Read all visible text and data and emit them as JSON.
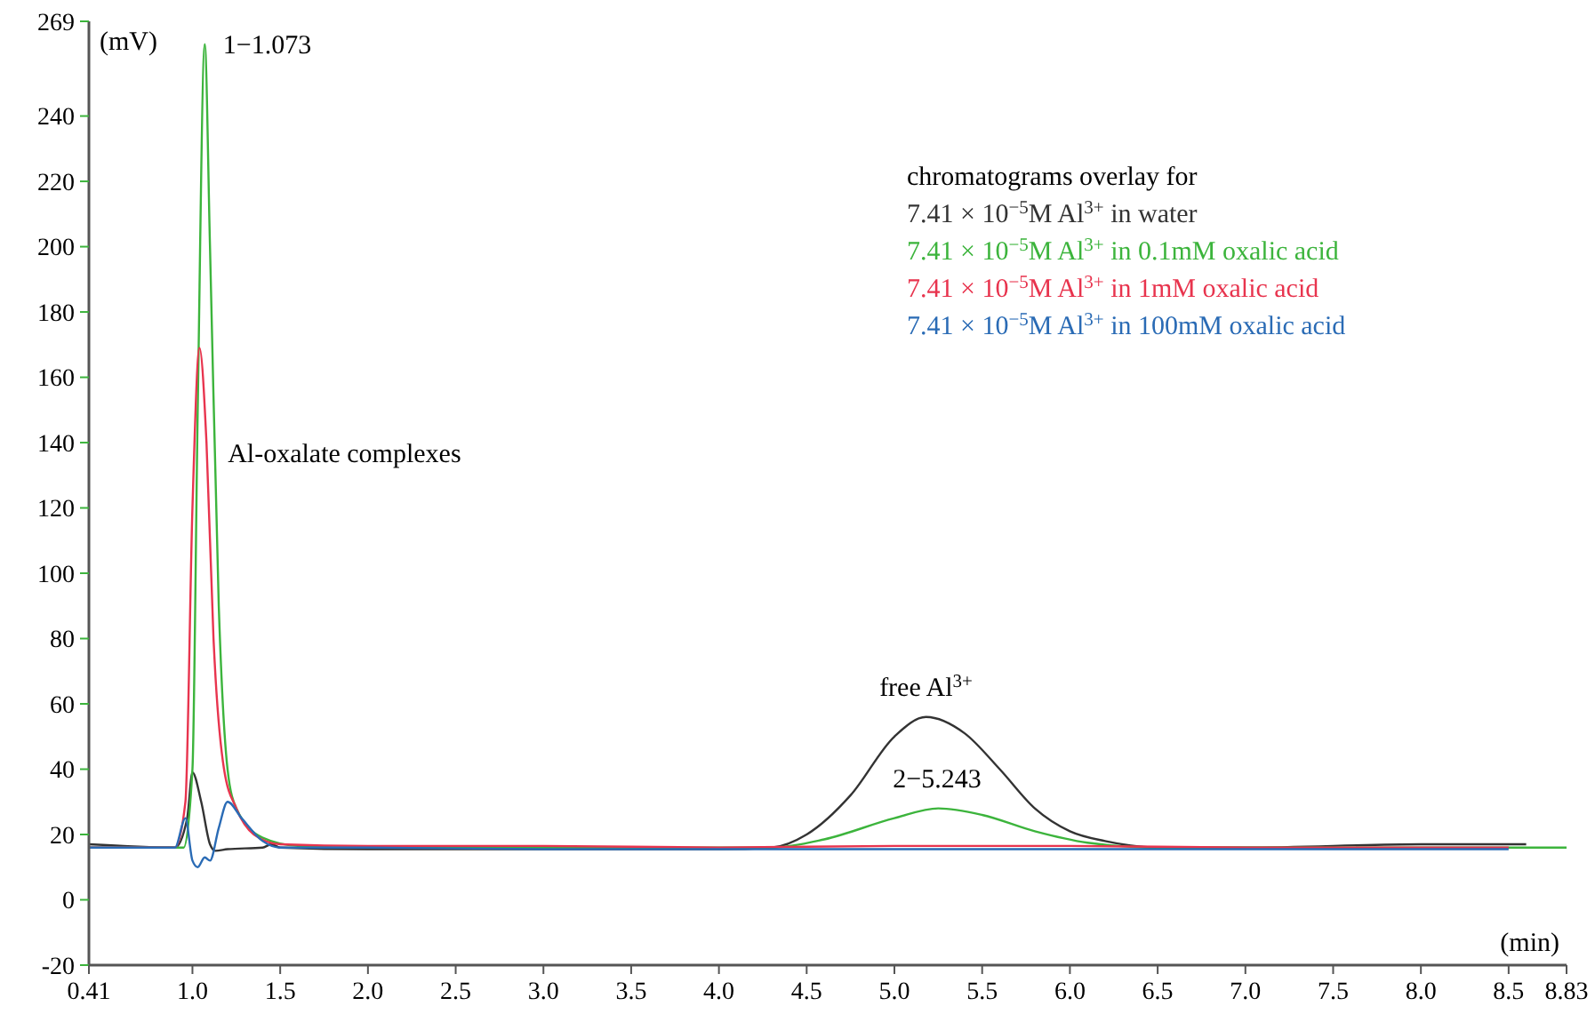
{
  "chart_data": {
    "type": "line",
    "ylabel": "(mV)",
    "xlabel": "(min)",
    "legend_title": "chromatograms overlay for",
    "legend": "top right",
    "grid": false,
    "xlim": [
      0.41,
      8.83
    ],
    "ylim": [
      -20,
      269
    ],
    "xticks": [
      0.41,
      {
        "value": 1,
        "label": "1.0"
      },
      1.5,
      {
        "value": 2,
        "label": "2.0"
      },
      2.5,
      {
        "value": 3,
        "label": "3.0"
      },
      3.5,
      {
        "value": 4,
        "label": "4.0"
      },
      4.5,
      {
        "value": 5,
        "label": "5.0"
      },
      5.5,
      {
        "value": 6,
        "label": "6.0"
      },
      6.5,
      {
        "value": 7,
        "label": "7.0"
      },
      7.5,
      {
        "value": 8,
        "label": "8.0"
      },
      8.5,
      8.83
    ],
    "yticks": [
      -20,
      0,
      20,
      40,
      60,
      80,
      100,
      120,
      140,
      160,
      180,
      200,
      220,
      240,
      269
    ],
    "series": [
      {
        "name": "7.41 × 10$^{−5}$M Al$^{3+}$ in water",
        "color": "#333333",
        "x": [
          0.41,
          0.9,
          0.97,
          1.0,
          1.05,
          1.1,
          1.13,
          1.2,
          1.4,
          1.45,
          1.5,
          2,
          3,
          4,
          4.3,
          4.5,
          4.75,
          5.0,
          5.18,
          5.4,
          5.6,
          5.8,
          6.0,
          6.2,
          6.5,
          7,
          8,
          8.6
        ],
        "values": [
          17,
          16,
          25,
          39,
          30,
          17,
          15,
          15.5,
          16,
          17,
          16,
          15.5,
          15.5,
          15.5,
          16,
          20,
          32,
          50,
          56,
          51,
          40,
          28,
          21,
          18,
          16,
          16,
          17,
          17
        ]
      },
      {
        "name": "7.41 × 10$^{−5}$M Al$^{3+}$ in 0.1mM oxalic acid",
        "color": "#3cb43c",
        "x": [
          0.41,
          0.95,
          1.0,
          1.03,
          1.07,
          1.1,
          1.15,
          1.2,
          1.25,
          1.4,
          1.6,
          2,
          3,
          4,
          4.3,
          4.6,
          5.0,
          5.25,
          5.5,
          5.8,
          6.1,
          6.5,
          7,
          8,
          8.83
        ],
        "values": [
          16,
          16,
          40,
          150,
          262,
          200,
          90,
          40,
          28,
          19,
          16.5,
          16,
          16,
          16,
          16,
          18.5,
          25,
          28,
          26,
          21,
          17.5,
          16,
          16,
          16,
          16
        ]
      },
      {
        "name": "7.41 × 10$^{−5}$M Al$^{3+}$ in 1mM oxalic acid",
        "color": "#e8344e",
        "x": [
          0.41,
          0.9,
          0.96,
          1.0,
          1.04,
          1.08,
          1.12,
          1.18,
          1.25,
          1.35,
          1.5,
          2,
          3,
          4,
          5,
          6,
          7,
          8,
          8.5
        ],
        "values": [
          16,
          16,
          30,
          120,
          169,
          140,
          80,
          40,
          28,
          20,
          17,
          16.5,
          16.5,
          16,
          16.5,
          16.5,
          16,
          16,
          16
        ]
      },
      {
        "name": "7.41 × 10$^{−5}$M Al$^{3+}$ in 100mM oxalic acid",
        "color": "#2a6bb5",
        "x": [
          0.41,
          0.9,
          0.96,
          1.0,
          1.03,
          1.07,
          1.1,
          1.15,
          1.2,
          1.28,
          1.4,
          1.5,
          2,
          3,
          4,
          5,
          6,
          7,
          8,
          8.5
        ],
        "values": [
          16,
          16,
          25,
          12,
          10,
          13,
          12,
          22,
          30,
          25,
          18,
          16,
          16,
          15.5,
          15.5,
          15.5,
          15.5,
          15.5,
          15.5,
          15.5
        ]
      }
    ],
    "annotations": [
      {
        "text": "1−1.073",
        "x": 1.073,
        "y": 262
      },
      {
        "text": "Al-oxalate complexes",
        "x": 1.1,
        "y": 137
      },
      {
        "text": "free Al$^{3+}$",
        "x": 5.18,
        "y": 56
      },
      {
        "text": "2−5.243",
        "x": 5.243,
        "y": 28
      }
    ]
  }
}
